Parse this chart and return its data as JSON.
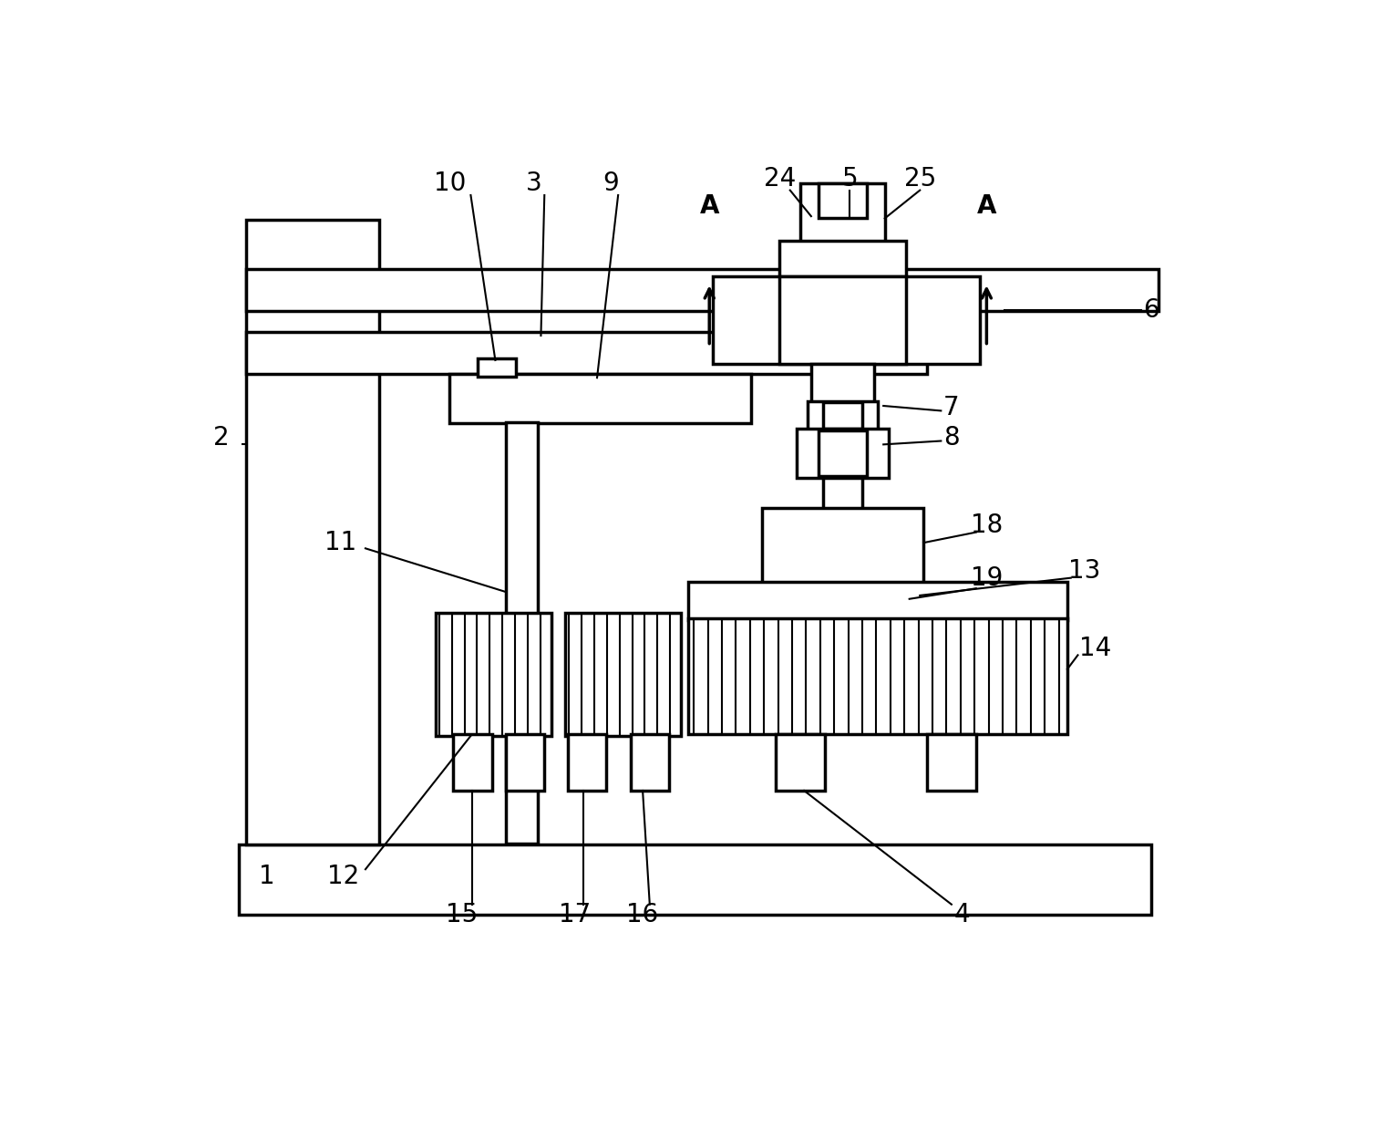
{
  "bg_color": "#ffffff",
  "line_color": "#000000",
  "lw": 2.5,
  "tlw": 1.5,
  "fs": 20,
  "fig_width": 15.14,
  "fig_height": 12.38
}
